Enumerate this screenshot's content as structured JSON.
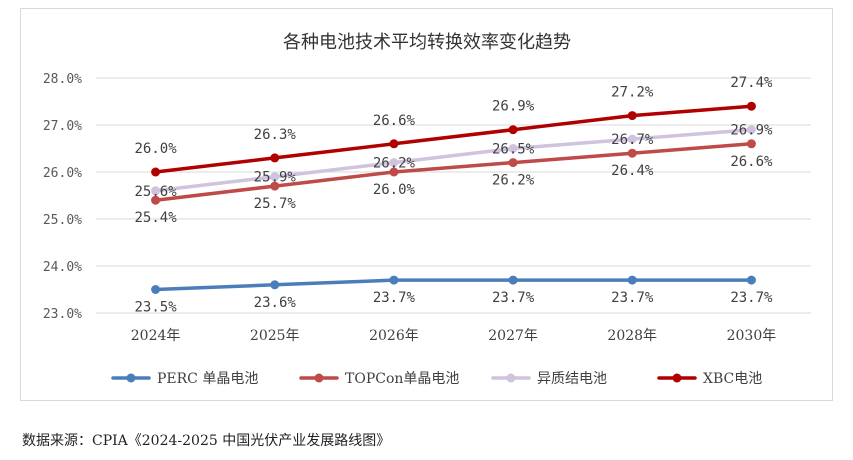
{
  "source_note": "数据来源：CPIA《2024-2025 中国光伏产业发展路线图》",
  "chart_data": {
    "type": "line",
    "title": "各种电池技术平均转换效率变化趋势",
    "xlabel": "",
    "ylabel": "",
    "categories": [
      "2024年",
      "2025年",
      "2026年",
      "2027年",
      "2028年",
      "2030年"
    ],
    "ylim": [
      23.0,
      28.0
    ],
    "yticks": [
      23.0,
      24.0,
      25.0,
      26.0,
      27.0,
      28.0
    ],
    "ytick_labels": [
      "23.0%",
      "24.0%",
      "25.0%",
      "26.0%",
      "27.0%",
      "28.0%"
    ],
    "grid": true,
    "legend_position": "bottom",
    "series": [
      {
        "name": "PERC 单晶电池",
        "color": "#4a7ebb",
        "values": [
          23.5,
          23.6,
          23.7,
          23.7,
          23.7,
          23.7
        ],
        "labels": [
          "23.5%",
          "23.6%",
          "23.7%",
          "23.7%",
          "23.7%",
          "23.7%"
        ],
        "label_pos": "below"
      },
      {
        "name": "TOPCon单晶电池",
        "color": "#be4b48",
        "values": [
          25.4,
          25.7,
          26.0,
          26.2,
          26.4,
          26.6
        ],
        "labels": [
          "25.4%",
          "25.7%",
          "26.0%",
          "26.2%",
          "26.4%",
          "26.6%"
        ],
        "label_pos": "below"
      },
      {
        "name": "异质结电池",
        "color": "#cfc3de",
        "values": [
          25.6,
          25.9,
          26.2,
          26.5,
          26.7,
          26.9
        ],
        "labels": [
          "25.6%",
          "25.9%",
          "26.2%",
          "26.5%",
          "26.7%",
          "26.9%"
        ],
        "label_pos": "center"
      },
      {
        "name": "XBC电池",
        "color": "#b00000",
        "values": [
          26.0,
          26.3,
          26.6,
          26.9,
          27.2,
          27.4
        ],
        "labels": [
          "26.0%",
          "26.3%",
          "26.6%",
          "26.9%",
          "27.2%",
          "27.4%"
        ],
        "label_pos": "above"
      }
    ]
  }
}
